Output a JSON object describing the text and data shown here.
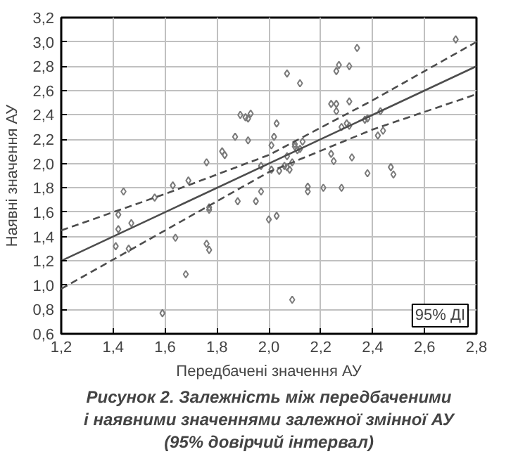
{
  "chart_data": {
    "type": "scatter",
    "title": "Рисунок 2. Залежність між передбаченими\nі наявними значеннями залежної змінної АУ\n(95% довірчий інтервал)",
    "xlabel": "Передбачені значення АУ",
    "ylabel": "Наявні значення АУ",
    "xlim": [
      1.2,
      2.8
    ],
    "ylim": [
      0.6,
      3.2
    ],
    "xticks": [
      {
        "value": 1.2,
        "label": "1,2"
      },
      {
        "value": 1.4,
        "label": "1,4"
      },
      {
        "value": 1.6,
        "label": "1,6"
      },
      {
        "value": 1.8,
        "label": "1,8"
      },
      {
        "value": 2.0,
        "label": "2,0"
      },
      {
        "value": 2.2,
        "label": "2,2"
      },
      {
        "value": 2.4,
        "label": "2,4"
      },
      {
        "value": 2.6,
        "label": "2,6"
      },
      {
        "value": 2.8,
        "label": "2,8"
      }
    ],
    "yticks": [
      {
        "value": 0.6,
        "label": "0,6"
      },
      {
        "value": 0.8,
        "label": "0,8"
      },
      {
        "value": 1.0,
        "label": "1,0"
      },
      {
        "value": 1.2,
        "label": "1,2"
      },
      {
        "value": 1.4,
        "label": "1,4"
      },
      {
        "value": 1.6,
        "label": "1,6"
      },
      {
        "value": 1.8,
        "label": "1,8"
      },
      {
        "value": 2.0,
        "label": "2,0"
      },
      {
        "value": 2.2,
        "label": "2,2"
      },
      {
        "value": 2.4,
        "label": "2,4"
      },
      {
        "value": 2.6,
        "label": "2,6"
      },
      {
        "value": 2.8,
        "label": "2,8"
      },
      {
        "value": 3.0,
        "label": "3,0"
      },
      {
        "value": 3.2,
        "label": "3,2"
      }
    ],
    "grid": true,
    "marker": "diamond",
    "annotations": [
      "95% ДІ"
    ],
    "series": [
      {
        "color": "#7a7a7a",
        "x": [
          1.76,
          1.82,
          1.83,
          1.87,
          1.92,
          1.89,
          1.91,
          1.93,
          1.92,
          2.03,
          2.02,
          2.01,
          2.07,
          2.12,
          2.34,
          2.27,
          2.26,
          2.31,
          2.72,
          2.24,
          2.26,
          2.26,
          2.31,
          2.28,
          2.3,
          2.31,
          2.37,
          2.38,
          2.42,
          2.44,
          2.43,
          2.24,
          2.25,
          2.32,
          2.38,
          2.47,
          2.48,
          2.1,
          2.1,
          2.12,
          2.11,
          2.13,
          2.07,
          2.08,
          2.06,
          2.09,
          2.15,
          2.15,
          2.21,
          2.28,
          2.03,
          2.09,
          1.44,
          1.42,
          1.42,
          1.47,
          1.41,
          1.46,
          1.56,
          1.63,
          1.69,
          1.64,
          1.68,
          1.59,
          1.77,
          1.77,
          1.76,
          1.77,
          1.88,
          1.95,
          1.97,
          2.0,
          1.97,
          2.01,
          2.04,
          2.07
        ],
        "values": [
          2.01,
          2.1,
          2.07,
          2.22,
          2.19,
          2.4,
          2.38,
          2.41,
          2.37,
          2.33,
          2.22,
          2.15,
          2.74,
          2.66,
          2.95,
          2.81,
          2.76,
          2.8,
          3.02,
          2.49,
          2.49,
          2.43,
          2.51,
          2.3,
          2.33,
          2.31,
          2.36,
          2.37,
          2.23,
          2.27,
          2.43,
          2.08,
          2.02,
          2.05,
          1.92,
          1.97,
          1.91,
          2.16,
          2.14,
          2.12,
          2.11,
          2.18,
          2.06,
          1.95,
          1.98,
          2.01,
          1.81,
          1.77,
          1.8,
          1.8,
          1.57,
          0.88,
          1.77,
          1.58,
          1.46,
          1.51,
          1.32,
          1.3,
          1.72,
          1.82,
          1.86,
          1.39,
          1.09,
          0.77,
          1.64,
          1.62,
          1.34,
          1.29,
          1.69,
          1.69,
          1.77,
          1.54,
          1.98,
          1.95,
          1.94,
          1.97
        ]
      },
      {
        "type": "line",
        "color": "#4d4d4d",
        "line_style": "solid",
        "marker": "none",
        "x": [
          1.2,
          2.8
        ],
        "values": [
          1.2,
          2.8
        ]
      },
      {
        "type": "line",
        "color": "#4d4d4d",
        "line_style": "dashed",
        "marker": "none",
        "x": [
          1.2,
          1.6,
          2.0,
          2.4,
          2.8
        ],
        "values": [
          1.45,
          1.75,
          2.07,
          2.52,
          3.0
        ]
      },
      {
        "type": "line",
        "color": "#4d4d4d",
        "line_style": "dashed",
        "marker": "none",
        "x": [
          1.2,
          1.6,
          2.0,
          2.4,
          2.8
        ],
        "values": [
          0.97,
          1.45,
          1.93,
          2.28,
          2.57
        ]
      }
    ]
  }
}
